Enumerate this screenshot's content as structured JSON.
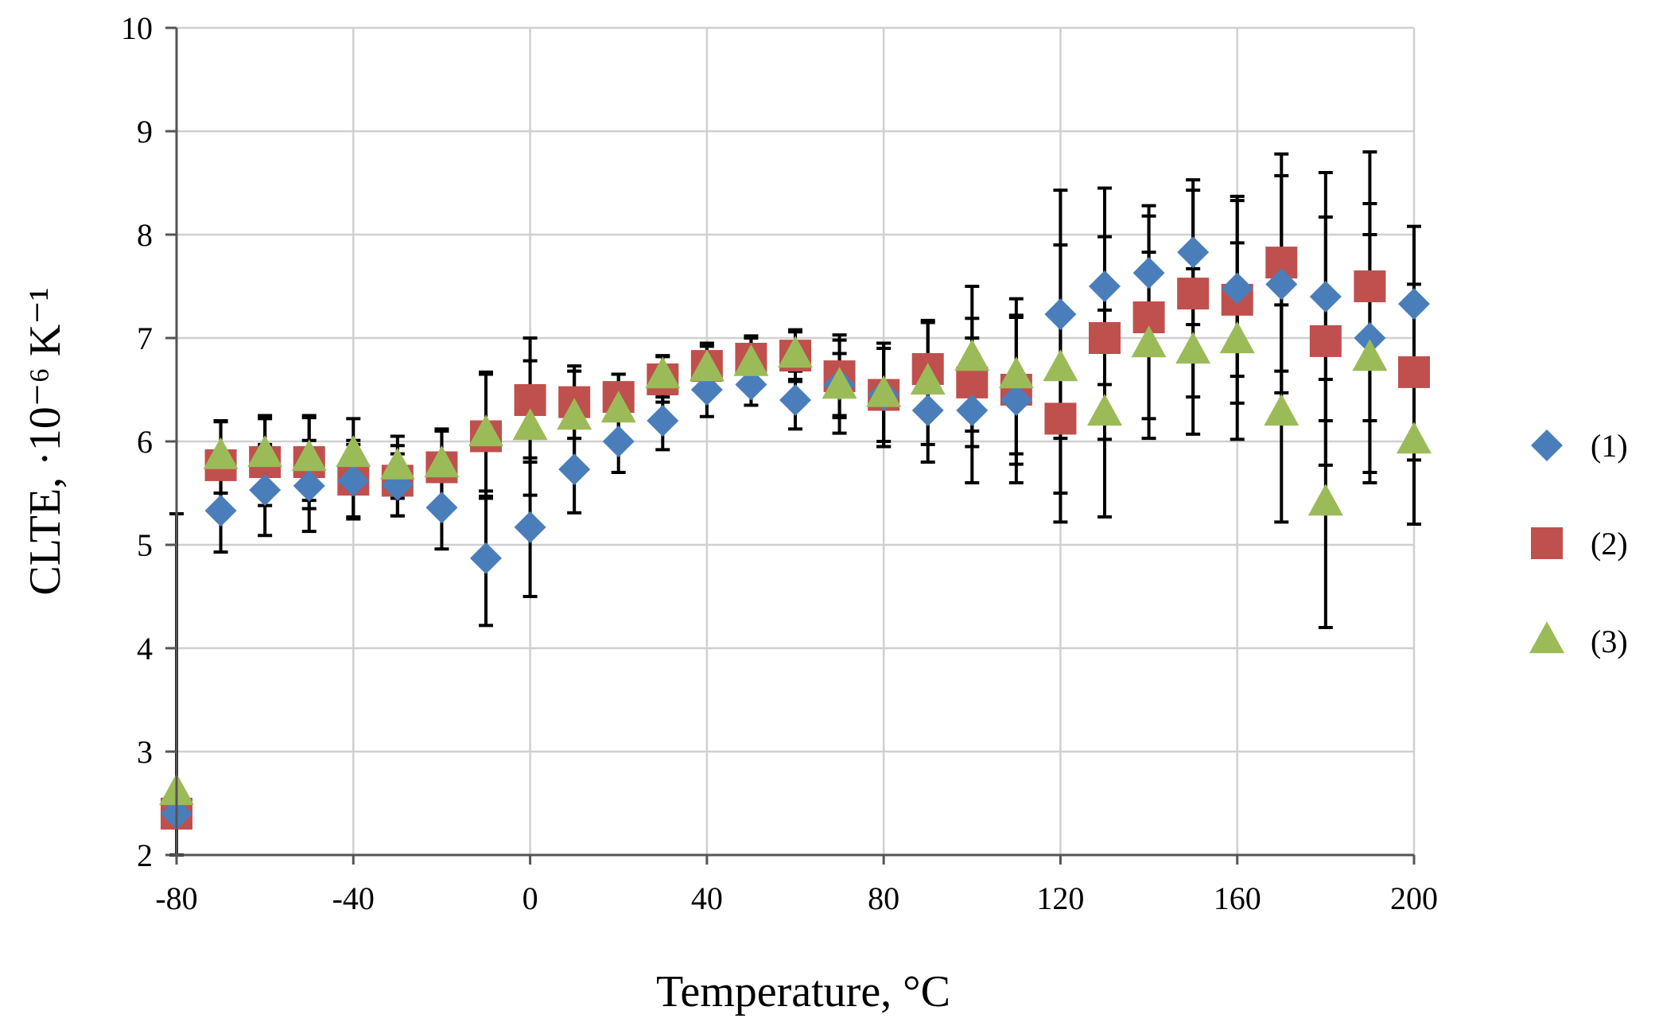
{
  "chart_data": {
    "type": "scatter",
    "title": "",
    "xlabel": "Temperature, °C",
    "ylabel": "CLTE, ·10⁻⁶ K⁻¹",
    "xlim": [
      -80,
      200
    ],
    "ylim": [
      2,
      10
    ],
    "xticks": [
      -80,
      -40,
      0,
      40,
      80,
      120,
      160,
      200
    ],
    "yticks": [
      2,
      3,
      4,
      5,
      6,
      7,
      8,
      9,
      10
    ],
    "xgrid_step": 40,
    "ygrid_step": 1,
    "grid": true,
    "legend_position": "right",
    "x": [
      -80,
      -70,
      -60,
      -50,
      -40,
      -30,
      -20,
      -10,
      0,
      10,
      20,
      30,
      40,
      50,
      60,
      70,
      80,
      90,
      100,
      110,
      120,
      130,
      140,
      150,
      160,
      170,
      180,
      190,
      200
    ],
    "series": [
      {
        "name": "(1)",
        "marker": "diamond",
        "color": "#4a7ebb",
        "values": [
          2.4,
          5.33,
          5.53,
          5.57,
          5.62,
          5.58,
          5.36,
          4.87,
          5.17,
          5.73,
          6.0,
          6.2,
          6.5,
          6.55,
          6.4,
          6.55,
          6.45,
          6.3,
          6.3,
          6.4,
          7.23,
          7.5,
          7.63,
          7.83,
          7.48,
          7.52,
          7.4,
          7.0,
          7.33
        ],
        "errors": [
          2.9,
          0.4,
          0.44,
          0.44,
          0.35,
          0.3,
          0.4,
          0.65,
          0.67,
          0.42,
          0.3,
          0.28,
          0.26,
          0.2,
          0.28,
          0.3,
          0.45,
          0.5,
          0.7,
          0.8,
          1.2,
          0.95,
          0.65,
          0.7,
          0.85,
          1.05,
          1.2,
          1.3,
          0.75
        ]
      },
      {
        "name": "(2)",
        "marker": "square",
        "color": "#c0504d",
        "values": [
          2.4,
          5.77,
          5.8,
          5.8,
          5.63,
          5.62,
          5.75,
          6.05,
          6.4,
          6.38,
          6.43,
          6.6,
          6.73,
          6.8,
          6.83,
          6.63,
          6.45,
          6.7,
          6.57,
          6.5,
          6.22,
          7.0,
          7.2,
          7.43,
          7.37,
          7.73,
          6.97,
          7.5,
          6.67
        ],
        "errors": [
          2.9,
          0.42,
          0.42,
          0.45,
          0.38,
          0.34,
          0.35,
          0.6,
          0.6,
          0.35,
          0.22,
          0.22,
          0.22,
          0.22,
          0.23,
          0.4,
          0.5,
          0.45,
          0.62,
          0.72,
          1.0,
          0.98,
          0.98,
          1.0,
          1.0,
          1.05,
          1.2,
          1.3,
          0.85
        ]
      },
      {
        "name": "(3)",
        "marker": "triangle",
        "color": "#9bbb59",
        "values": [
          2.6,
          5.85,
          5.87,
          5.83,
          5.87,
          5.75,
          5.77,
          6.07,
          6.13,
          6.23,
          6.3,
          6.63,
          6.7,
          6.75,
          6.83,
          6.53,
          6.45,
          6.57,
          6.8,
          6.63,
          6.7,
          6.27,
          6.93,
          6.87,
          6.97,
          6.27,
          5.4,
          6.8,
          6.0
        ],
        "errors": [
          2.7,
          0.35,
          0.38,
          0.4,
          0.35,
          0.3,
          0.35,
          0.6,
          0.65,
          0.45,
          0.35,
          0.2,
          0.22,
          0.25,
          0.25,
          0.45,
          0.5,
          0.6,
          0.7,
          0.75,
          1.2,
          1.0,
          0.9,
          0.8,
          0.95,
          1.05,
          1.2,
          1.2,
          0.8
        ]
      }
    ]
  }
}
